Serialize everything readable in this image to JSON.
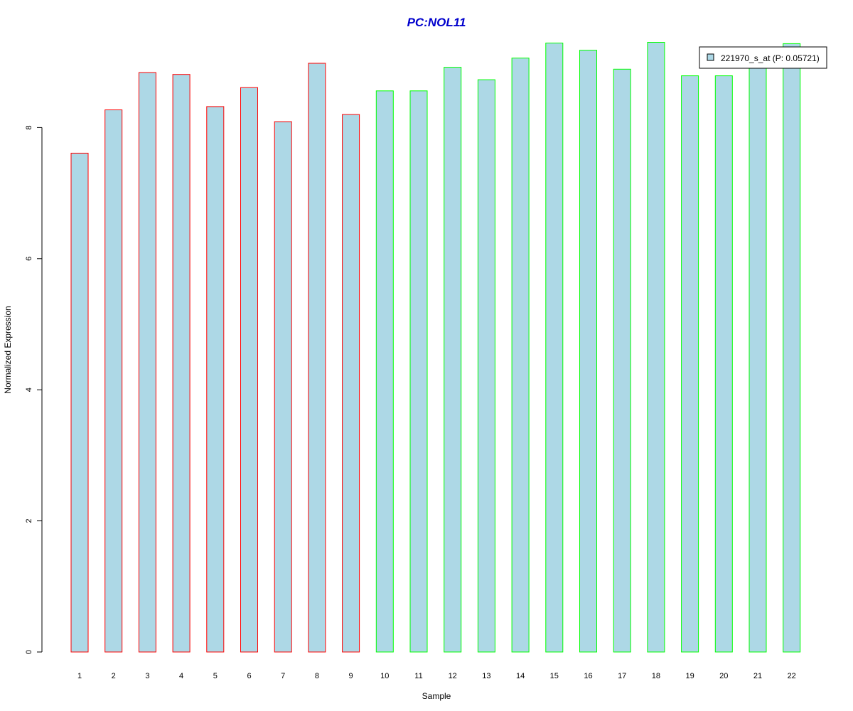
{
  "colors": {
    "bar_fill": "#add8e6",
    "group1_border": "#ff0000",
    "group2_border": "#00ff00",
    "title": "#0000cd",
    "axis": "#000000"
  },
  "chart_data": {
    "type": "bar",
    "title": "PC:NOL11",
    "xlabel": "Sample",
    "ylabel": "Normalized Expression",
    "ylim": [
      0,
      9.5
    ],
    "yticks": [
      0,
      2,
      4,
      6,
      8
    ],
    "grid": false,
    "legend_position": "top-right",
    "categories": [
      "1",
      "2",
      "3",
      "4",
      "5",
      "6",
      "7",
      "8",
      "9",
      "10",
      "11",
      "12",
      "13",
      "14",
      "15",
      "16",
      "17",
      "18",
      "19",
      "20",
      "21",
      "22"
    ],
    "series": [
      {
        "name": "221970_s_at (P: 0.05721)",
        "values": [
          7.61,
          8.27,
          8.84,
          8.81,
          8.32,
          8.61,
          8.09,
          8.98,
          8.2,
          8.56,
          8.56,
          8.92,
          8.73,
          9.06,
          9.29,
          9.18,
          8.89,
          9.3,
          8.79,
          8.79,
          8.96,
          9.28
        ]
      }
    ],
    "group_border_colors": [
      "red",
      "red",
      "red",
      "red",
      "red",
      "red",
      "red",
      "red",
      "red",
      "green",
      "green",
      "green",
      "green",
      "green",
      "green",
      "green",
      "green",
      "green",
      "green",
      "green",
      "green",
      "green"
    ]
  }
}
